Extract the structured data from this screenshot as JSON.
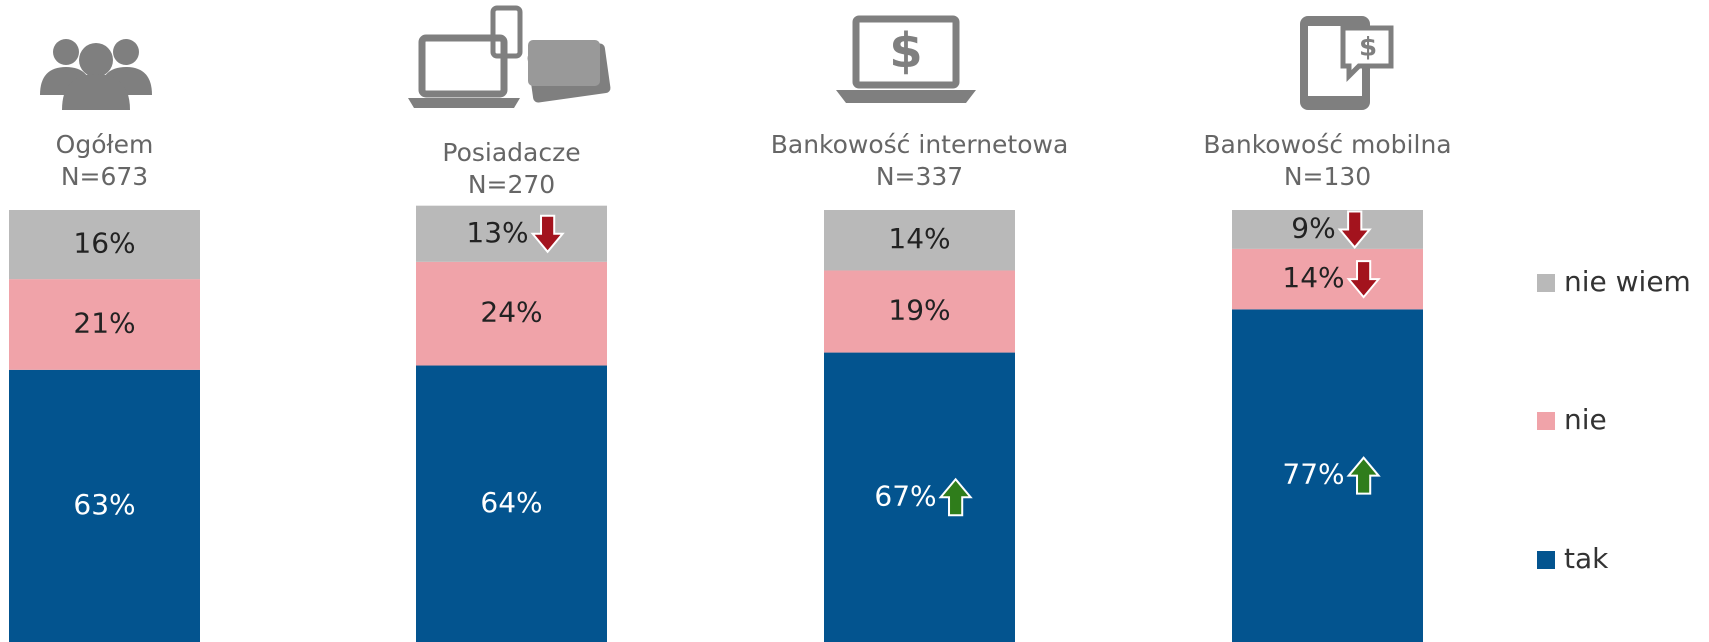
{
  "chart_data": {
    "type": "stacked_bar",
    "categories": [
      "Ogółem",
      "Posiadacze",
      "Bankowość internetowa",
      "Bankowość mobilna"
    ],
    "sample_sizes": [
      "N=673",
      "N=270",
      "N=337",
      "N=130"
    ],
    "ylim": [
      0,
      100
    ],
    "legend": "right",
    "series": [
      {
        "name": "tak",
        "color": "#03548f",
        "values": [
          63,
          64,
          67,
          77
        ],
        "value_labels": [
          "63%",
          "64%",
          "67%",
          "77%"
        ],
        "significance": [
          null,
          null,
          "up",
          "up"
        ]
      },
      {
        "name": "nie",
        "color": "#f0a3a9",
        "values": [
          21,
          24,
          19,
          14
        ],
        "value_labels": [
          "21%",
          "24%",
          "19%",
          "14%"
        ],
        "significance": [
          null,
          null,
          null,
          "down"
        ]
      },
      {
        "name": "nie wiem",
        "color": "#b9b9b9",
        "values": [
          16,
          13,
          14,
          9
        ],
        "value_labels": [
          "16%",
          "13%",
          "14%",
          "9%"
        ],
        "significance": [
          null,
          "down",
          null,
          "down"
        ]
      }
    ],
    "arrow_colors": {
      "up": "#2f7d1b",
      "down": "#a3131d"
    }
  }
}
